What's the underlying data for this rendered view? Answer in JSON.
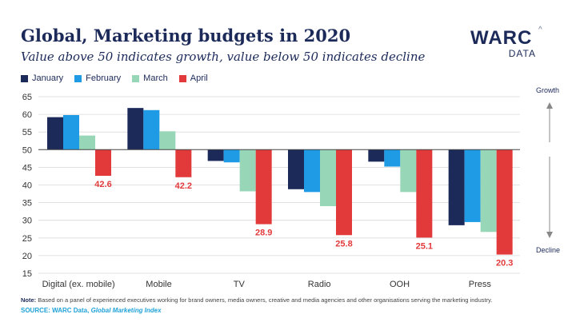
{
  "header": {
    "title": "Global, Marketing budgets in 2020",
    "subtitle": "Value above 50 indicates growth, value below 50 indicates decline"
  },
  "logo": {
    "word": "WARC",
    "sub": "DATA",
    "caret": "^"
  },
  "footer": {
    "note_label": "Note:",
    "note_text": " Based on a panel of experienced executives working for brand owners, media owners, creative and media agencies and other organisations serving the marketing industry.",
    "source_label": "SOURCE:",
    "source_text": " WARC Data, ",
    "source_italic": "Global Marketing Index"
  },
  "side_labels": {
    "growth": "Growth",
    "decline": "Decline"
  },
  "colors": {
    "January": "#1c2a5a",
    "February": "#1f9be6",
    "March": "#98d6b8",
    "April": "#e23a3b",
    "april_label": "#e23a3b",
    "axis_text": "#333333",
    "gridline": "#d9d9d9",
    "baseline": "#444444"
  },
  "chart_data": {
    "type": "bar",
    "categories": [
      "Digital (ex. mobile)",
      "Mobile",
      "TV",
      "Radio",
      "OOH",
      "Press"
    ],
    "series": [
      {
        "name": "January",
        "values": [
          59.2,
          61.8,
          46.8,
          38.8,
          46.6,
          28.6
        ]
      },
      {
        "name": "February",
        "values": [
          59.8,
          61.2,
          46.4,
          38.0,
          45.2,
          29.5
        ]
      },
      {
        "name": "March",
        "values": [
          54.0,
          55.2,
          38.2,
          34.0,
          38.0,
          26.7
        ]
      },
      {
        "name": "April",
        "values": [
          42.6,
          42.2,
          28.9,
          25.8,
          25.1,
          20.3
        ]
      }
    ],
    "data_labels": [
      "42.6",
      "42.2",
      "28.9",
      "25.8",
      "25.1",
      "20.3"
    ],
    "baseline": 50,
    "ylim": [
      15,
      65
    ],
    "yticks": [
      15,
      20,
      25,
      30,
      35,
      40,
      45,
      50,
      55,
      60,
      65
    ],
    "grid": true,
    "legend": "top-left"
  }
}
